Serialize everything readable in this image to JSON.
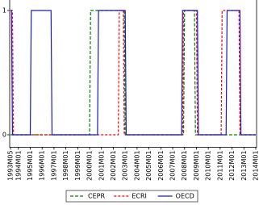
{
  "chart_data": {
    "type": "line",
    "categories": [
      "1993M05",
      null,
      null,
      null,
      null,
      null,
      null,
      null,
      "1994M01",
      null,
      null,
      null,
      null,
      null,
      null,
      null,
      null,
      null,
      null,
      null,
      "1995M01",
      null,
      null,
      null,
      null,
      null,
      null,
      null,
      null,
      null,
      null,
      null,
      "1996M01",
      null,
      null,
      null,
      null,
      null,
      null,
      null,
      null,
      null,
      null,
      null,
      "1997M01",
      null,
      null,
      null,
      null,
      null,
      null,
      null,
      null,
      null,
      null,
      null,
      "1998M01",
      null,
      null,
      null,
      null,
      null,
      null,
      null,
      null,
      null,
      null,
      null,
      "1999M01",
      null,
      null,
      null,
      null,
      null,
      null,
      null,
      null,
      null,
      null,
      null,
      "2000M01",
      null,
      null,
      null,
      null,
      null,
      null,
      null,
      null,
      null,
      null,
      null,
      "2001M01",
      null,
      null,
      null,
      null,
      null,
      null,
      null,
      null,
      null,
      null,
      null,
      "2002M01",
      null,
      null,
      null,
      null,
      null,
      null,
      null,
      null,
      null,
      null,
      null,
      "2003M01",
      null,
      null,
      null,
      null,
      null,
      null,
      null,
      null,
      null,
      null,
      null,
      "2004M01",
      null,
      null,
      null,
      null,
      null,
      null,
      null,
      null,
      null,
      null,
      null,
      "2005M01",
      null,
      null,
      null,
      null,
      null,
      null,
      null,
      null,
      null,
      null,
      null,
      "2006M01",
      null,
      null,
      null,
      null,
      null,
      null,
      null,
      null,
      null,
      null,
      null,
      "2007M01",
      null,
      null,
      null,
      null,
      null,
      null,
      null,
      null,
      null,
      null,
      null,
      "2008M01",
      null,
      null,
      null,
      null,
      null,
      null,
      null,
      null,
      null,
      null,
      null,
      "2009M01",
      null,
      null,
      null,
      null,
      null,
      null,
      null,
      null,
      null,
      null,
      null,
      "2010M01",
      null,
      null,
      null,
      null,
      null,
      null,
      null,
      null,
      null,
      null,
      null,
      "2011M01",
      null,
      null,
      null,
      null,
      null,
      null,
      null,
      null,
      null,
      null,
      null,
      "2012M01",
      null,
      null,
      null,
      null,
      null,
      null,
      null,
      null,
      null,
      null,
      null,
      "2013M01",
      null,
      null,
      null,
      null,
      null,
      null,
      null,
      null,
      null,
      null,
      null,
      "2014M01"
    ],
    "series": [
      {
        "name": "CEPR",
        "color": "#008000",
        "dash": "4,2",
        "values": [
          0,
          0,
          0,
          0,
          0,
          0,
          0,
          0,
          0,
          0,
          0,
          0,
          0,
          0,
          0,
          0,
          0,
          0,
          0,
          0,
          0,
          0,
          0,
          0,
          0,
          0,
          0,
          0,
          0,
          0,
          0,
          0,
          0,
          0,
          0,
          0,
          0,
          0,
          0,
          0,
          0,
          0,
          0,
          0,
          0,
          0,
          0,
          0,
          0,
          0,
          0,
          0,
          0,
          0,
          0,
          0,
          0,
          0,
          0,
          0,
          0,
          0,
          0,
          0,
          0,
          0,
          0,
          0,
          0,
          0,
          0,
          0,
          0,
          0,
          0,
          0,
          0,
          0,
          0,
          0,
          0,
          1,
          1,
          1,
          1,
          1,
          1,
          1,
          1,
          1,
          1,
          1,
          1,
          1,
          1,
          1,
          1,
          1,
          1,
          1,
          1,
          1,
          1,
          1,
          1,
          1,
          1,
          1,
          1,
          1,
          1,
          1,
          1,
          1,
          1,
          1,
          0,
          0,
          0,
          0,
          0,
          0,
          0,
          0,
          0,
          0,
          0,
          0,
          0,
          0,
          0,
          0,
          0,
          0,
          0,
          0,
          0,
          0,
          0,
          0,
          0,
          0,
          0,
          0,
          0,
          0,
          0,
          0,
          0,
          0,
          0,
          0,
          0,
          0,
          0,
          0,
          0,
          0,
          0,
          0,
          0,
          0,
          0,
          0,
          0,
          0,
          0,
          0,
          0,
          0,
          0,
          0,
          0,
          0,
          0,
          0,
          1,
          1,
          1,
          1,
          1,
          1,
          1,
          1,
          1,
          1,
          1,
          0,
          0,
          0,
          0,
          0,
          0,
          0,
          0,
          0,
          0,
          0,
          0,
          0,
          0,
          0,
          0,
          0,
          0,
          0,
          0,
          0,
          0,
          0,
          0,
          0,
          0,
          0,
          0,
          0,
          0,
          0,
          0,
          0,
          0,
          0,
          0,
          0,
          0,
          0,
          0,
          0,
          0,
          0,
          0,
          0,
          0,
          0,
          0,
          0,
          0,
          0,
          0,
          0,
          0,
          0,
          0,
          0,
          0,
          0,
          0,
          0,
          0
        ]
      },
      {
        "name": "ECRI",
        "color": "#ff0000",
        "dash": "3,2",
        "values": [
          1,
          1,
          1,
          0,
          0,
          0,
          0,
          0,
          0,
          0,
          0,
          0,
          0,
          0,
          0,
          0,
          0,
          0,
          0,
          0,
          0,
          0,
          0,
          0,
          0,
          0,
          0,
          0,
          0,
          0,
          0,
          0,
          0,
          0,
          0,
          0,
          0,
          0,
          0,
          0,
          0,
          0,
          0,
          0,
          0,
          0,
          0,
          0,
          0,
          0,
          0,
          0,
          0,
          0,
          0,
          0,
          0,
          0,
          0,
          0,
          0,
          0,
          0,
          0,
          0,
          0,
          0,
          0,
          0,
          0,
          0,
          0,
          0,
          0,
          0,
          0,
          0,
          0,
          0,
          0,
          0,
          0,
          0,
          0,
          0,
          0,
          0,
          0,
          0,
          0,
          0,
          0,
          0,
          0,
          0,
          0,
          0,
          0,
          0,
          0,
          0,
          0,
          0,
          0,
          0,
          0,
          0,
          0,
          0,
          0,
          1,
          1,
          1,
          1,
          1,
          0,
          0,
          0,
          0,
          0,
          0,
          0,
          0,
          0,
          0,
          0,
          0,
          0,
          0,
          0,
          0,
          0,
          0,
          0,
          0,
          0,
          0,
          0,
          0,
          0,
          0,
          0,
          0,
          0,
          0,
          0,
          0,
          0,
          0,
          0,
          0,
          0,
          0,
          0,
          0,
          0,
          0,
          0,
          0,
          0,
          0,
          0,
          0,
          0,
          0,
          0,
          0,
          0,
          0,
          0,
          0,
          0,
          0,
          0,
          0,
          1,
          1,
          1,
          1,
          1,
          1,
          1,
          1,
          1,
          1,
          1,
          1,
          1,
          1,
          0,
          0,
          0,
          0,
          0,
          0,
          0,
          0,
          0,
          0,
          0,
          0,
          0,
          0,
          0,
          0,
          0,
          0,
          0,
          0,
          0,
          0,
          0,
          0,
          0,
          1,
          1,
          1,
          1,
          1,
          1,
          1,
          1,
          1,
          1,
          1,
          1,
          1,
          1,
          1,
          1,
          1,
          1,
          0,
          0,
          0,
          0,
          0,
          0,
          0,
          0,
          0,
          0,
          0,
          0,
          0,
          0,
          0,
          0,
          0
        ]
      },
      {
        "name": "OECD",
        "color": "#1a1ac8",
        "dash": null,
        "values": [
          1,
          1,
          0,
          0,
          0,
          0,
          0,
          0,
          0,
          0,
          0,
          0,
          0,
          0,
          0,
          0,
          0,
          0,
          0,
          0,
          0,
          1,
          1,
          1,
          1,
          1,
          1,
          1,
          1,
          1,
          1,
          1,
          1,
          1,
          1,
          1,
          1,
          1,
          1,
          1,
          1,
          1,
          0,
          0,
          0,
          0,
          0,
          0,
          0,
          0,
          0,
          0,
          0,
          0,
          0,
          0,
          0,
          0,
          0,
          0,
          0,
          0,
          0,
          0,
          0,
          0,
          0,
          0,
          0,
          0,
          0,
          0,
          0,
          0,
          0,
          0,
          0,
          0,
          0,
          0,
          0,
          0,
          0,
          0,
          0,
          0,
          0,
          0,
          0,
          1,
          1,
          1,
          1,
          1,
          1,
          1,
          1,
          1,
          1,
          1,
          1,
          1,
          1,
          1,
          1,
          1,
          1,
          1,
          1,
          1,
          1,
          1,
          1,
          1,
          1,
          1,
          1,
          0,
          0,
          0,
          0,
          0,
          0,
          0,
          0,
          0,
          0,
          0,
          0,
          0,
          0,
          0,
          0,
          0,
          0,
          0,
          0,
          0,
          0,
          0,
          0,
          0,
          0,
          0,
          0,
          0,
          0,
          0,
          0,
          0,
          0,
          0,
          0,
          0,
          0,
          0,
          0,
          0,
          0,
          0,
          0,
          0,
          0,
          0,
          0,
          0,
          0,
          0,
          0,
          0,
          0,
          0,
          0,
          0,
          1,
          1,
          1,
          1,
          1,
          1,
          1,
          1,
          1,
          1,
          1,
          1,
          1,
          1,
          1,
          1,
          0,
          0,
          0,
          0,
          0,
          0,
          0,
          0,
          0,
          0,
          0,
          0,
          0,
          0,
          0,
          0,
          0,
          0,
          0,
          0,
          0,
          0,
          0,
          0,
          0,
          0,
          0,
          0,
          0,
          1,
          1,
          1,
          1,
          1,
          1,
          1,
          1,
          1,
          1,
          1,
          1,
          1,
          1,
          0,
          0,
          0,
          0,
          0,
          0,
          0,
          0,
          0,
          0,
          0,
          0,
          0,
          0,
          0,
          0
        ]
      }
    ],
    "ylim": [
      -0.1,
      1.1
    ],
    "yticks": [
      0,
      1
    ],
    "legend": "lower center"
  }
}
